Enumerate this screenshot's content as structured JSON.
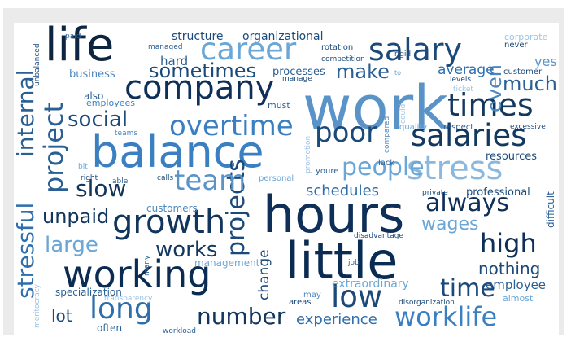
{
  "palette": {
    "darkest": "#08306b",
    "dark": "#0d3c70",
    "navy": "#1b4a7a",
    "mid": "#2e6eac",
    "blue": "#3a7fc1",
    "light": "#6aa6d6",
    "pale": "#9cc3e4",
    "faint": "#bcd5ec"
  },
  "words": [
    {
      "text": "work",
      "color": "#5a93c8"
    },
    {
      "text": "hours",
      "color": "#0e2f57"
    },
    {
      "text": "little",
      "color": "#0b2c52"
    },
    {
      "text": "balance",
      "color": "#3a7fc1"
    },
    {
      "text": "life",
      "color": "#0d2540"
    },
    {
      "text": "company",
      "color": "#0e2f57"
    },
    {
      "text": "stress",
      "color": "#8ab8de"
    },
    {
      "text": "salary",
      "color": "#1b4a7a"
    },
    {
      "text": "salaries",
      "color": "#13385f"
    },
    {
      "text": "career",
      "color": "#6aa6d6"
    },
    {
      "text": "growth",
      "color": "#12355d"
    },
    {
      "text": "working",
      "color": "#0b2c52"
    },
    {
      "text": "times",
      "color": "#13385f"
    },
    {
      "text": "overtime",
      "color": "#3a7fc1"
    },
    {
      "text": "project",
      "color": "#2a5f94"
    },
    {
      "text": "projects",
      "color": "#1b4a7a"
    },
    {
      "text": "people",
      "color": "#6aa6d6"
    },
    {
      "text": "poor",
      "color": "#1b4a7a"
    },
    {
      "text": "team",
      "color": "#5a93c8"
    },
    {
      "text": "always",
      "color": "#0e2f57"
    },
    {
      "text": "stressful",
      "color": "#2e6eac"
    },
    {
      "text": "internal",
      "color": "#2a5f94"
    },
    {
      "text": "low",
      "color": "#1b4a7a"
    },
    {
      "text": "long",
      "color": "#2e6eac"
    },
    {
      "text": "worklife",
      "color": "#3a7fc1"
    },
    {
      "text": "number",
      "color": "#12355d"
    },
    {
      "text": "high",
      "color": "#0e2f57"
    },
    {
      "text": "time",
      "color": "#1b4a7a"
    },
    {
      "text": "even",
      "color": "#4b86bd"
    },
    {
      "text": "much",
      "color": "#2a5f94"
    },
    {
      "text": "make",
      "color": "#2a5f94"
    },
    {
      "text": "sometimes",
      "color": "#1b4a7a"
    },
    {
      "text": "social",
      "color": "#1b4a7a"
    },
    {
      "text": "slow",
      "color": "#12355d"
    },
    {
      "text": "unpaid",
      "color": "#12355d"
    },
    {
      "text": "large",
      "color": "#6aa6d6"
    },
    {
      "text": "works",
      "color": "#13385f"
    },
    {
      "text": "wages",
      "color": "#6aa6d6"
    },
    {
      "text": "schedules",
      "color": "#2e6eac"
    },
    {
      "text": "nothing",
      "color": "#1b4a7a"
    },
    {
      "text": "lot",
      "color": "#1b4a7a"
    },
    {
      "text": "experience",
      "color": "#2e6eac"
    },
    {
      "text": "change",
      "color": "#1b4a7a"
    },
    {
      "text": "employee",
      "color": "#2a5f94"
    },
    {
      "text": "extraordinary",
      "color": "#6aa6d6"
    },
    {
      "text": "average",
      "color": "#2e6eac"
    },
    {
      "text": "yes",
      "color": "#5a93c8"
    },
    {
      "text": "hard",
      "color": "#2a5f94"
    },
    {
      "text": "structure",
      "color": "#1b4a7a"
    },
    {
      "text": "organizational",
      "color": "#1b4a7a"
    },
    {
      "text": "resources",
      "color": "#1b4a7a"
    },
    {
      "text": "professional",
      "color": "#1b4a7a"
    },
    {
      "text": "difficult",
      "color": "#2a5f94"
    },
    {
      "text": "business",
      "color": "#4b86bd"
    },
    {
      "text": "processes",
      "color": "#2a5f94"
    },
    {
      "text": "customers",
      "color": "#4b86bd"
    },
    {
      "text": "specialization",
      "color": "#2a5f94"
    },
    {
      "text": "management",
      "color": "#6aa6d6"
    },
    {
      "text": "often",
      "color": "#2a5f94"
    },
    {
      "text": "also",
      "color": "#2a5f94"
    },
    {
      "text": "employees",
      "color": "#3a7fc1"
    },
    {
      "text": "must",
      "color": "#2a5f94"
    },
    {
      "text": "corporate",
      "color": "#9cc3e4"
    },
    {
      "text": "never",
      "color": "#1b4a7a"
    },
    {
      "text": "customer",
      "color": "#1b4a7a"
    },
    {
      "text": "competition",
      "color": "#1b4a7a"
    },
    {
      "text": "rotation",
      "color": "#1b4a7a"
    },
    {
      "text": "managed",
      "color": "#2a5f94"
    },
    {
      "text": "paid",
      "color": "#2a5f94"
    },
    {
      "text": "rigid",
      "color": "#1b4a7a"
    },
    {
      "text": "levels",
      "color": "#1b4a7a"
    },
    {
      "text": "ticket",
      "color": "#9cc3e4"
    },
    {
      "text": "quality",
      "color": "#6aa6d6"
    },
    {
      "text": "respect",
      "color": "#2a5f94"
    },
    {
      "text": "excessive",
      "color": "#1b4a7a"
    },
    {
      "text": "could",
      "color": "#9cc3e4"
    },
    {
      "text": "compared",
      "color": "#4b86bd"
    },
    {
      "text": "lack",
      "color": "#2a5f94"
    },
    {
      "text": "youre",
      "color": "#2a5f94"
    },
    {
      "text": "private",
      "color": "#1b4a7a"
    },
    {
      "text": "promotion",
      "color": "#9cc3e4"
    },
    {
      "text": "personal",
      "color": "#6aa6d6"
    },
    {
      "text": "calls",
      "color": "#1b4a7a"
    },
    {
      "text": "able",
      "color": "#2a5f94"
    },
    {
      "text": "right",
      "color": "#1b4a7a"
    },
    {
      "text": "bit",
      "color": "#6aa6d6"
    },
    {
      "text": "teams",
      "color": "#4b86bd"
    },
    {
      "text": "many",
      "color": "#2a5f94"
    },
    {
      "text": "transparency",
      "color": "#9cc3e4"
    },
    {
      "text": "meritocracy",
      "color": "#9cc3e4"
    },
    {
      "text": "unbalanced",
      "color": "#1b4a7a"
    },
    {
      "text": "disadvantage",
      "color": "#1b4a7a"
    },
    {
      "text": "job",
      "color": "#2a5f94"
    },
    {
      "text": "areas",
      "color": "#1b4a7a"
    },
    {
      "text": "may",
      "color": "#4b86bd"
    },
    {
      "text": "disorganization",
      "color": "#1b4a7a"
    },
    {
      "text": "almost",
      "color": "#6aa6d6"
    },
    {
      "text": "workload",
      "color": "#2a5f94"
    },
    {
      "text": "manage",
      "color": "#1b4a7a"
    },
    {
      "text": "to",
      "color": "#6aa6d6"
    }
  ]
}
